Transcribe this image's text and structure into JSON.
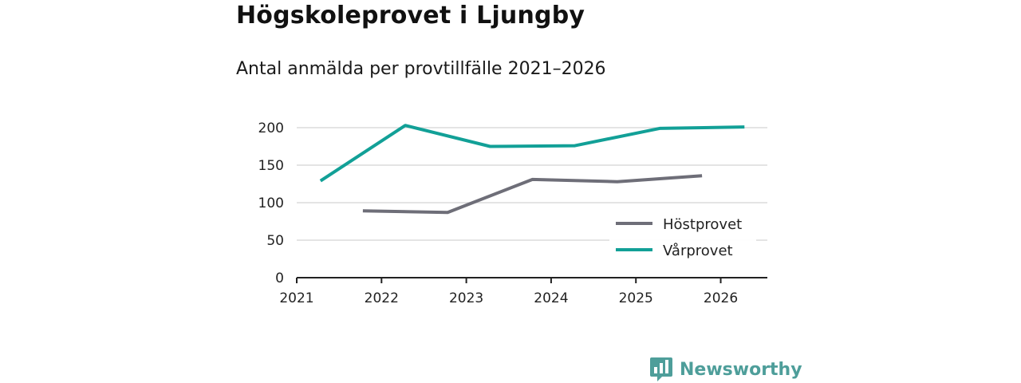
{
  "title": "Högskoleprovet i Ljungby",
  "subtitle": "Antal anmälda per provtillfälle 2021–2026",
  "brand": {
    "name": "Newsworthy",
    "icon": "newsworthy-logo-icon",
    "color": "#4e9e9a"
  },
  "chart_data": {
    "type": "line",
    "title": "Högskoleprovet i Ljungby",
    "subtitle": "Antal anmälda per provtillfälle 2021–2026",
    "xlabel": "",
    "ylabel": "",
    "xlim": [
      2021,
      2026.55
    ],
    "ylim": [
      0,
      200
    ],
    "x_ticks": [
      "2021",
      "2022",
      "2023",
      "2024",
      "2025",
      "2026"
    ],
    "y_ticks": [
      "0",
      "50",
      "100",
      "150",
      "200"
    ],
    "grid": true,
    "legend_position": "bottom-right",
    "series": [
      {
        "name": "Höstprovet",
        "color": "#6e6e78",
        "x": [
          2021.78,
          2022.78,
          2023.78,
          2024.78,
          2025.78
        ],
        "y": [
          89,
          87,
          131,
          128,
          136
        ]
      },
      {
        "name": "Vårprovet",
        "color": "#12a097",
        "x": [
          2021.28,
          2022.28,
          2023.28,
          2024.28,
          2025.28,
          2026.28
        ],
        "y": [
          129,
          203,
          175,
          176,
          199,
          201
        ]
      }
    ]
  }
}
